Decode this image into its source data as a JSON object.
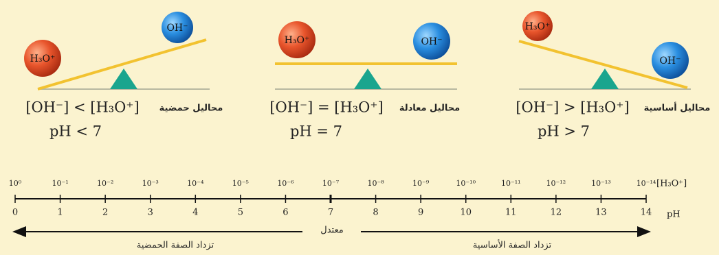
{
  "panels": [
    {
      "category": "محاليل حمضية",
      "relation": "[OH⁻] < [H₃O⁺]",
      "ph": "pH < 7",
      "h3o": "H₃O⁺",
      "oh": "OH⁻"
    },
    {
      "category": "محاليل معادلة",
      "relation": "[OH⁻] = [H₃O⁺]",
      "ph": "pH = 7",
      "h3o": "H₃O⁺",
      "oh": "OH⁻"
    },
    {
      "category": "محاليل أساسية",
      "relation": "[OH⁻] > [H₃O⁺]",
      "ph": "pH > 7",
      "h3o": "H₃O⁺",
      "oh": "OH⁻"
    }
  ],
  "scale": {
    "concentration_label": "[H₃O⁺]",
    "concentrations": [
      "10⁰",
      "10⁻¹",
      "10⁻²",
      "10⁻³",
      "10⁻⁴",
      "10⁻⁵",
      "10⁻⁶",
      "10⁻⁷",
      "10⁻⁸",
      "10⁻⁹",
      "10⁻¹⁰",
      "10⁻¹¹",
      "10⁻¹²",
      "10⁻¹³",
      "10⁻¹⁴"
    ],
    "ph_label": "pH",
    "ph_values": [
      0,
      1,
      2,
      3,
      4,
      5,
      6,
      7,
      8,
      9,
      10,
      11,
      12,
      13,
      14
    ],
    "neutral": "معتدل",
    "acidic_arrow": "تزداد الصفة الحمضية",
    "basic_arrow": "تزداد الصفة الأساسية"
  }
}
